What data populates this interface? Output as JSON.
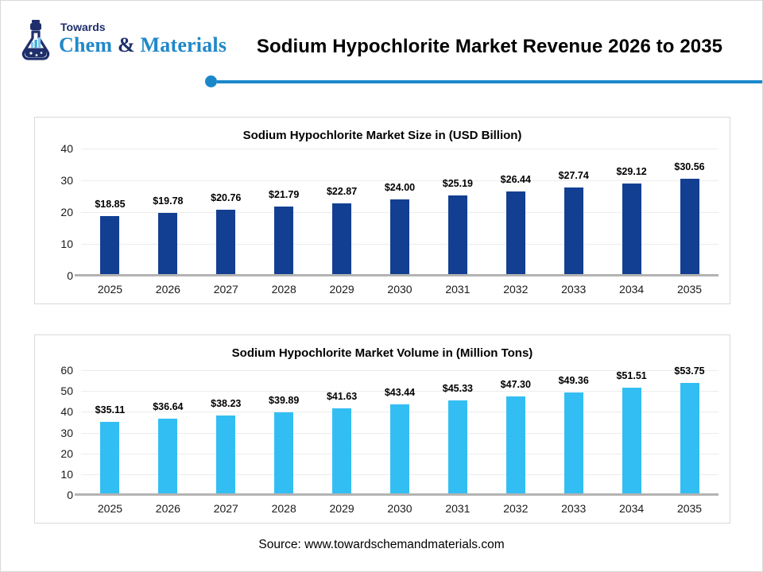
{
  "page": {
    "title": "Sodium Hypochlorite Market Revenue 2026 to 2035",
    "source": "Source: www.towardschemandmaterials.com",
    "accent_color": "#1b87cb"
  },
  "logo": {
    "top_text": "Towards",
    "brand_chem": "Chem",
    "brand_amp": "&",
    "brand_materials": "Materials",
    "navy": "#1f2f6b",
    "blue": "#2088c8"
  },
  "chart_data": [
    {
      "type": "bar",
      "title": "Sodium Hypochlorite Market Size in (USD Billion)",
      "categories": [
        "2025",
        "2026",
        "2027",
        "2028",
        "2029",
        "2030",
        "2031",
        "2032",
        "2033",
        "2034",
        "2035"
      ],
      "values": [
        18.85,
        19.78,
        20.76,
        21.79,
        22.87,
        24.0,
        25.19,
        26.44,
        27.74,
        29.12,
        30.56
      ],
      "labels": [
        "$18.85",
        "$19.78",
        "$20.76",
        "$21.79",
        "$22.87",
        "$24.00",
        "$25.19",
        "$26.44",
        "$27.74",
        "$29.12",
        "$30.56"
      ],
      "xlabel": "",
      "ylabel": "",
      "ylim": [
        0,
        40
      ],
      "ytick_step": 10,
      "grid": true,
      "legend": false,
      "bar_color": "#123f91"
    },
    {
      "type": "bar",
      "title": "Sodium Hypochlorite Market Volume in (Million Tons)",
      "categories": [
        "2025",
        "2026",
        "2027",
        "2028",
        "2029",
        "2030",
        "2031",
        "2032",
        "2033",
        "2034",
        "2035"
      ],
      "values": [
        35.11,
        36.64,
        38.23,
        39.89,
        41.63,
        43.44,
        45.33,
        47.3,
        49.36,
        51.51,
        53.75
      ],
      "labels": [
        "$35.11",
        "$36.64",
        "$38.23",
        "$39.89",
        "$41.63",
        "$43.44",
        "$45.33",
        "$47.30",
        "$49.36",
        "$51.51",
        "$53.75"
      ],
      "xlabel": "",
      "ylabel": "",
      "ylim": [
        0,
        60
      ],
      "ytick_step": 10,
      "grid": true,
      "legend": false,
      "bar_color": "#33bef3"
    }
  ]
}
